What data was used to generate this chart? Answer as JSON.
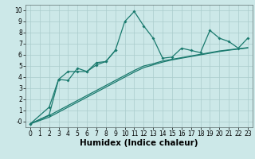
{
  "xlabel": "Humidex (Indice chaleur)",
  "background_color": "#cce8e8",
  "grid_color": "#aacccc",
  "line_color": "#1a7a6e",
  "x_values": [
    0,
    1,
    2,
    3,
    4,
    5,
    6,
    7,
    8,
    9,
    10,
    11,
    12,
    13,
    14,
    15,
    16,
    17,
    18,
    19,
    20,
    21,
    22,
    23
  ],
  "series1": [
    -0.2,
    null,
    1.3,
    3.8,
    3.7,
    4.8,
    4.5,
    5.3,
    5.4,
    6.4,
    9.0,
    9.9,
    8.6,
    7.5,
    5.7,
    5.8,
    6.6,
    6.4,
    6.2,
    8.2,
    7.5,
    7.2,
    6.6,
    7.5
  ],
  "series2": [
    -0.2,
    null,
    0.6,
    3.8,
    4.5,
    4.5,
    4.5,
    5.1,
    5.4,
    6.4,
    null,
    null,
    null,
    null,
    null,
    null,
    null,
    null,
    null,
    null,
    null,
    null,
    null,
    null
  ],
  "line_straight1": [
    -0.2,
    0.18,
    0.55,
    1.0,
    1.45,
    1.9,
    2.35,
    2.8,
    3.25,
    3.7,
    4.15,
    4.6,
    5.0,
    5.2,
    5.45,
    5.6,
    5.75,
    5.9,
    6.05,
    6.2,
    6.35,
    6.45,
    6.55,
    6.65
  ],
  "line_straight2": [
    -0.2,
    0.1,
    0.4,
    0.85,
    1.3,
    1.75,
    2.2,
    2.65,
    3.1,
    3.55,
    4.0,
    4.45,
    4.85,
    5.1,
    5.35,
    5.55,
    5.7,
    5.85,
    6.0,
    6.15,
    6.3,
    6.42,
    6.52,
    6.62
  ],
  "ylim": [
    -0.5,
    10.5
  ],
  "xlim": [
    -0.5,
    23.5
  ],
  "yticks": [
    0,
    1,
    2,
    3,
    4,
    5,
    6,
    7,
    8,
    9,
    10
  ],
  "ytick_labels": [
    "-0",
    "1",
    "2",
    "3",
    "4",
    "5",
    "6",
    "7",
    "8",
    "9",
    "10"
  ],
  "xticks": [
    0,
    1,
    2,
    3,
    4,
    5,
    6,
    7,
    8,
    9,
    10,
    11,
    12,
    13,
    14,
    15,
    16,
    17,
    18,
    19,
    20,
    21,
    22,
    23
  ],
  "tick_fontsize": 5.5,
  "label_fontsize": 7.5
}
